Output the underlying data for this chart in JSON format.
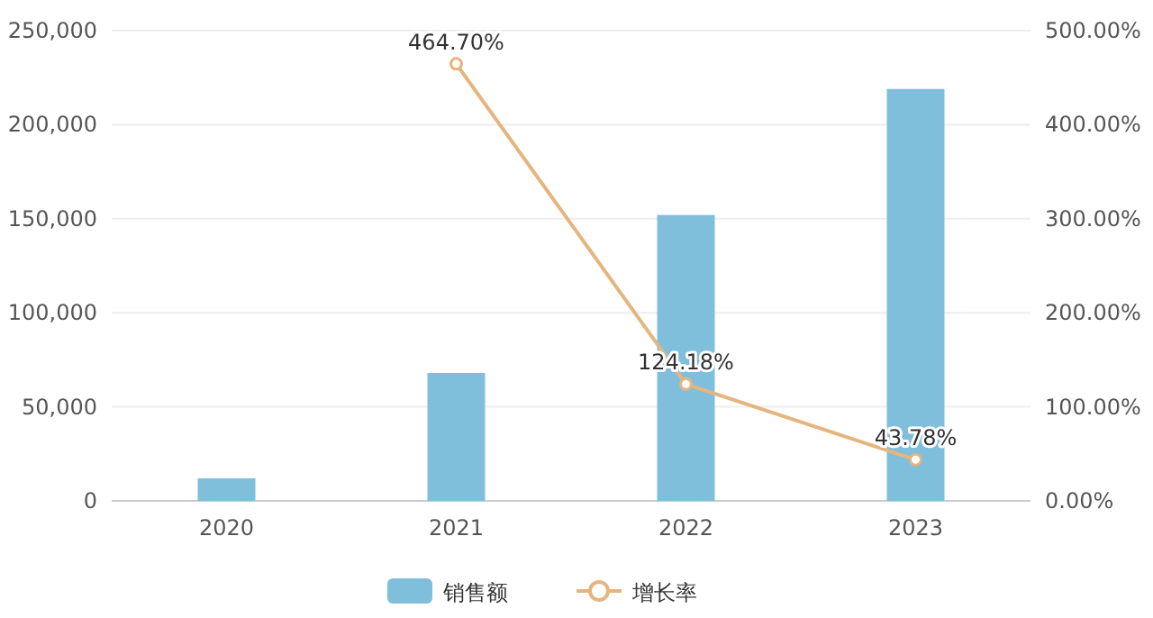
{
  "chart_data": {
    "type": "bar",
    "categories": [
      "2020",
      "2021",
      "2022",
      "2023"
    ],
    "series": [
      {
        "name": "销售额",
        "color": "#7fbfdc",
        "values": [
          12000,
          68000,
          152000,
          219000
        ]
      },
      {
        "name": "增长率",
        "type": "line",
        "axis": "y2",
        "color": "#e5b57f",
        "marker": "circle",
        "values": [
          null,
          464.7,
          124.18,
          43.78
        ],
        "value_labels": [
          null,
          "464.70%",
          "124.18%",
          "43.78%"
        ]
      }
    ],
    "ylim": [
      0,
      250000
    ],
    "yticks": [
      {
        "value": 0,
        "label": "0"
      },
      {
        "value": 50000,
        "label": "50,000"
      },
      {
        "value": 100000,
        "label": "100,000"
      },
      {
        "value": 150000,
        "label": "150,000"
      },
      {
        "value": 200000,
        "label": "200,000"
      },
      {
        "value": 250000,
        "label": "250,000"
      }
    ],
    "y2lim": [
      0,
      500
    ],
    "y2ticks": [
      {
        "value": 0,
        "label": "0.00%"
      },
      {
        "value": 100,
        "label": "100.00%"
      },
      {
        "value": 200,
        "label": "200.00%"
      },
      {
        "value": 300,
        "label": "300.00%"
      },
      {
        "value": 400,
        "label": "400.00%"
      },
      {
        "value": 500,
        "label": "500.00%"
      }
    ],
    "grid": "y",
    "legend": "bottom"
  }
}
